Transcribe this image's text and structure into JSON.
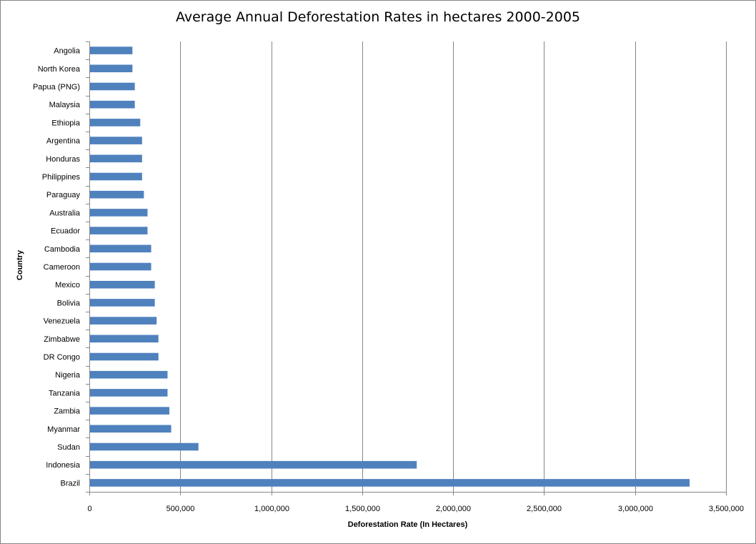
{
  "chart_data": {
    "type": "bar",
    "orientation": "horizontal",
    "title": "Average Annual Deforestation Rates in hectares 2000-2005",
    "xlabel": "Deforestation Rate (In Hectares)",
    "ylabel": "Country",
    "xlim": [
      0,
      3500000
    ],
    "xticks": [
      0,
      500000,
      1000000,
      1500000,
      2000000,
      2500000,
      3000000,
      3500000
    ],
    "xtick_labels": [
      "0",
      "500,000",
      "1,000,000",
      "1,500,000",
      "2,000,000",
      "2,500,000",
      "3,000,000",
      "3,500,000"
    ],
    "grid": "vertical major gridlines",
    "legend": "none",
    "bar_color": "#4F81BD",
    "categories": [
      "Angolia",
      "North Korea",
      "Papua (PNG)",
      "Malaysia",
      "Ethiopia",
      "Argentina",
      "Honduras",
      "Philippines",
      "Paraguay",
      "Australia",
      "Ecuador",
      "Cambodia",
      "Cameroon",
      "Mexico",
      "Bolivia",
      "Venezuela",
      "Zimbabwe",
      "DR Congo",
      "Nigeria",
      "Tanzania",
      "Zambia",
      "Myanmar",
      "Sudan",
      "Indonesia",
      "Brazil"
    ],
    "values": [
      237000,
      237000,
      250000,
      250000,
      280000,
      290000,
      290000,
      290000,
      300000,
      320000,
      320000,
      340000,
      340000,
      360000,
      360000,
      370000,
      380000,
      380000,
      430000,
      430000,
      440000,
      450000,
      600000,
      1800000,
      3300000
    ]
  }
}
